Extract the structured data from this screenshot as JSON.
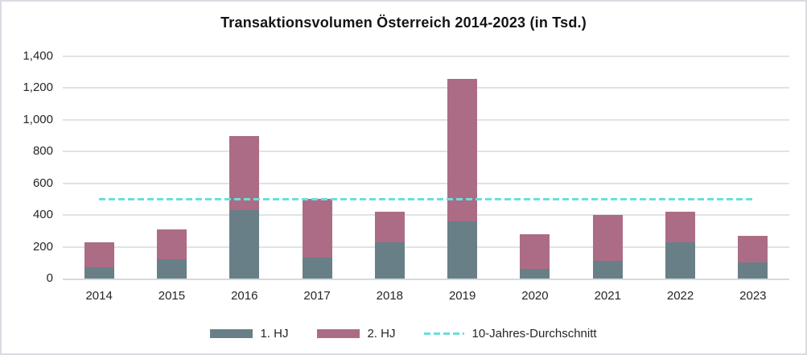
{
  "chart_data": {
    "type": "bar",
    "stacked": true,
    "title": "Transaktionsvolumen Österreich 2014-2023 (in Tsd.)",
    "categories": [
      "2014",
      "2015",
      "2016",
      "2017",
      "2018",
      "2019",
      "2020",
      "2021",
      "2022",
      "2023"
    ],
    "series": [
      {
        "name": "1. HJ",
        "color": "#697f87",
        "values": [
          70,
          120,
          430,
          130,
          230,
          360,
          60,
          110,
          230,
          100
        ]
      },
      {
        "name": "2. HJ",
        "color": "#ad6c85",
        "values": [
          160,
          190,
          470,
          370,
          190,
          900,
          220,
          290,
          190,
          170
        ]
      }
    ],
    "stack_totals": [
      230,
      310,
      900,
      500,
      420,
      1260,
      280,
      400,
      420,
      270
    ],
    "average_line": {
      "label": "10-Jahres-Durchschnitt",
      "value": 500,
      "color": "#67e0dd",
      "style": "dashed"
    },
    "ylim": [
      0,
      1400
    ],
    "ytick_step": 200,
    "ytick_labels": [
      "0",
      "200",
      "400",
      "600",
      "800",
      "1,000",
      "1,200",
      "1,400"
    ],
    "xlabel": "",
    "ylabel": "",
    "grid": true,
    "legend_position": "bottom"
  },
  "colors": {
    "background": "#ffffff",
    "border": "#d9dde2",
    "gridline": "#dfe3e8",
    "axis_line": "#d4d9de",
    "text": "#1f1f1f"
  }
}
